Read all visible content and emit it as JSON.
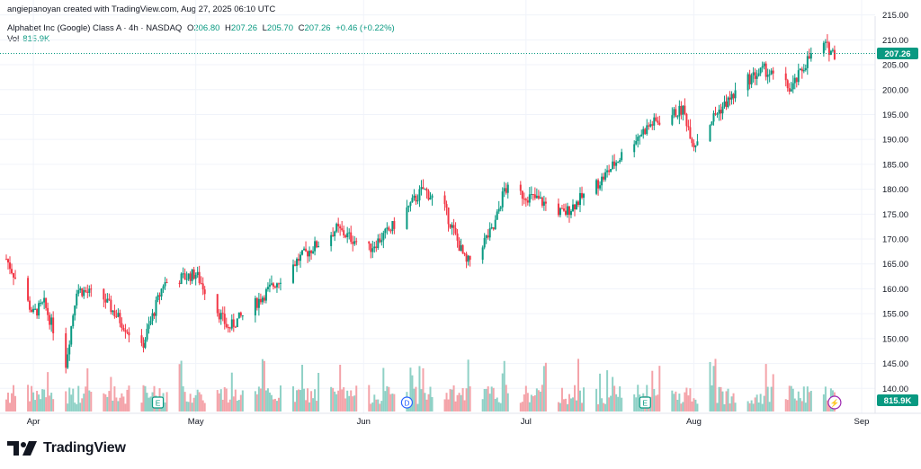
{
  "header": {
    "attribution": "angiepanoyan created with TradingView.com, Aug 27, 2025 06:10 UTC"
  },
  "legend": {
    "symbol": "Alphabet Inc (Google) Class A · 4h · NASDAQ",
    "open_label": "O",
    "open_value": "206.80",
    "high_label": "H",
    "high_value": "207.26",
    "low_label": "L",
    "low_value": "205.70",
    "close_label": "C",
    "close_value": "207.26",
    "change": "+0.46 (+0.22%)",
    "volume_label": "Vol",
    "volume_value": "815.9K"
  },
  "price_tag": "207.26",
  "volume_tag": "815.9K",
  "footer": {
    "brand": "TradingView"
  },
  "colors": {
    "up": "#089981",
    "down": "#f23645",
    "up_vol": "#8fd1c6",
    "down_vol": "#f4a3a9",
    "grid": "#f0f3fa",
    "axis_text": "#131722"
  },
  "event_markers": [
    {
      "label": "E",
      "type": "earnings",
      "date": "2025-04-24"
    },
    {
      "label": "D",
      "type": "dividend",
      "date": "2025-06-09"
    },
    {
      "label": "E",
      "type": "earnings",
      "date": "2025-07-23"
    },
    {
      "label": "⚡",
      "type": "split",
      "date": "2025-08-27"
    }
  ],
  "chart_data": {
    "type": "candlestick",
    "timeframe": "4h",
    "x_tick_labels": [
      "Apr",
      "May",
      "Jun",
      "Jul",
      "Aug",
      "Sep"
    ],
    "y_tick_labels": [
      "140.00",
      "145.00",
      "150.00",
      "155.00",
      "160.00",
      "165.00",
      "170.00",
      "175.00",
      "180.00",
      "185.00",
      "190.00",
      "195.00",
      "200.00",
      "205.00",
      "210.00",
      "215.00"
    ],
    "ylim": [
      135,
      218
    ],
    "grid": true,
    "last_price": 207.26,
    "close_trend": [
      {
        "date": "2025-03-27",
        "close": 166
      },
      {
        "date": "2025-04-01",
        "close": 155
      },
      {
        "date": "2025-04-03",
        "close": 157
      },
      {
        "date": "2025-04-07",
        "close": 145
      },
      {
        "date": "2025-04-09",
        "close": 160
      },
      {
        "date": "2025-04-14",
        "close": 158
      },
      {
        "date": "2025-04-21",
        "close": 148
      },
      {
        "date": "2025-04-25",
        "close": 161
      },
      {
        "date": "2025-05-01",
        "close": 163
      },
      {
        "date": "2025-05-07",
        "close": 152
      },
      {
        "date": "2025-05-12",
        "close": 157
      },
      {
        "date": "2025-05-20",
        "close": 166
      },
      {
        "date": "2025-05-27",
        "close": 172
      },
      {
        "date": "2025-06-02",
        "close": 168
      },
      {
        "date": "2025-06-06",
        "close": 172
      },
      {
        "date": "2025-06-12",
        "close": 180
      },
      {
        "date": "2025-06-16",
        "close": 176
      },
      {
        "date": "2025-06-20",
        "close": 165
      },
      {
        "date": "2025-06-25",
        "close": 172
      },
      {
        "date": "2025-06-27",
        "close": 180
      },
      {
        "date": "2025-07-03",
        "close": 178
      },
      {
        "date": "2025-07-08",
        "close": 175
      },
      {
        "date": "2025-07-15",
        "close": 182
      },
      {
        "date": "2025-07-21",
        "close": 190
      },
      {
        "date": "2025-07-24",
        "close": 193
      },
      {
        "date": "2025-07-30",
        "close": 196
      },
      {
        "date": "2025-08-01",
        "close": 189
      },
      {
        "date": "2025-08-05",
        "close": 195
      },
      {
        "date": "2025-08-11",
        "close": 202
      },
      {
        "date": "2025-08-14",
        "close": 204
      },
      {
        "date": "2025-08-19",
        "close": 200
      },
      {
        "date": "2025-08-22",
        "close": 206
      },
      {
        "date": "2025-08-25",
        "close": 209
      },
      {
        "date": "2025-08-27",
        "close": 207.26
      }
    ]
  }
}
